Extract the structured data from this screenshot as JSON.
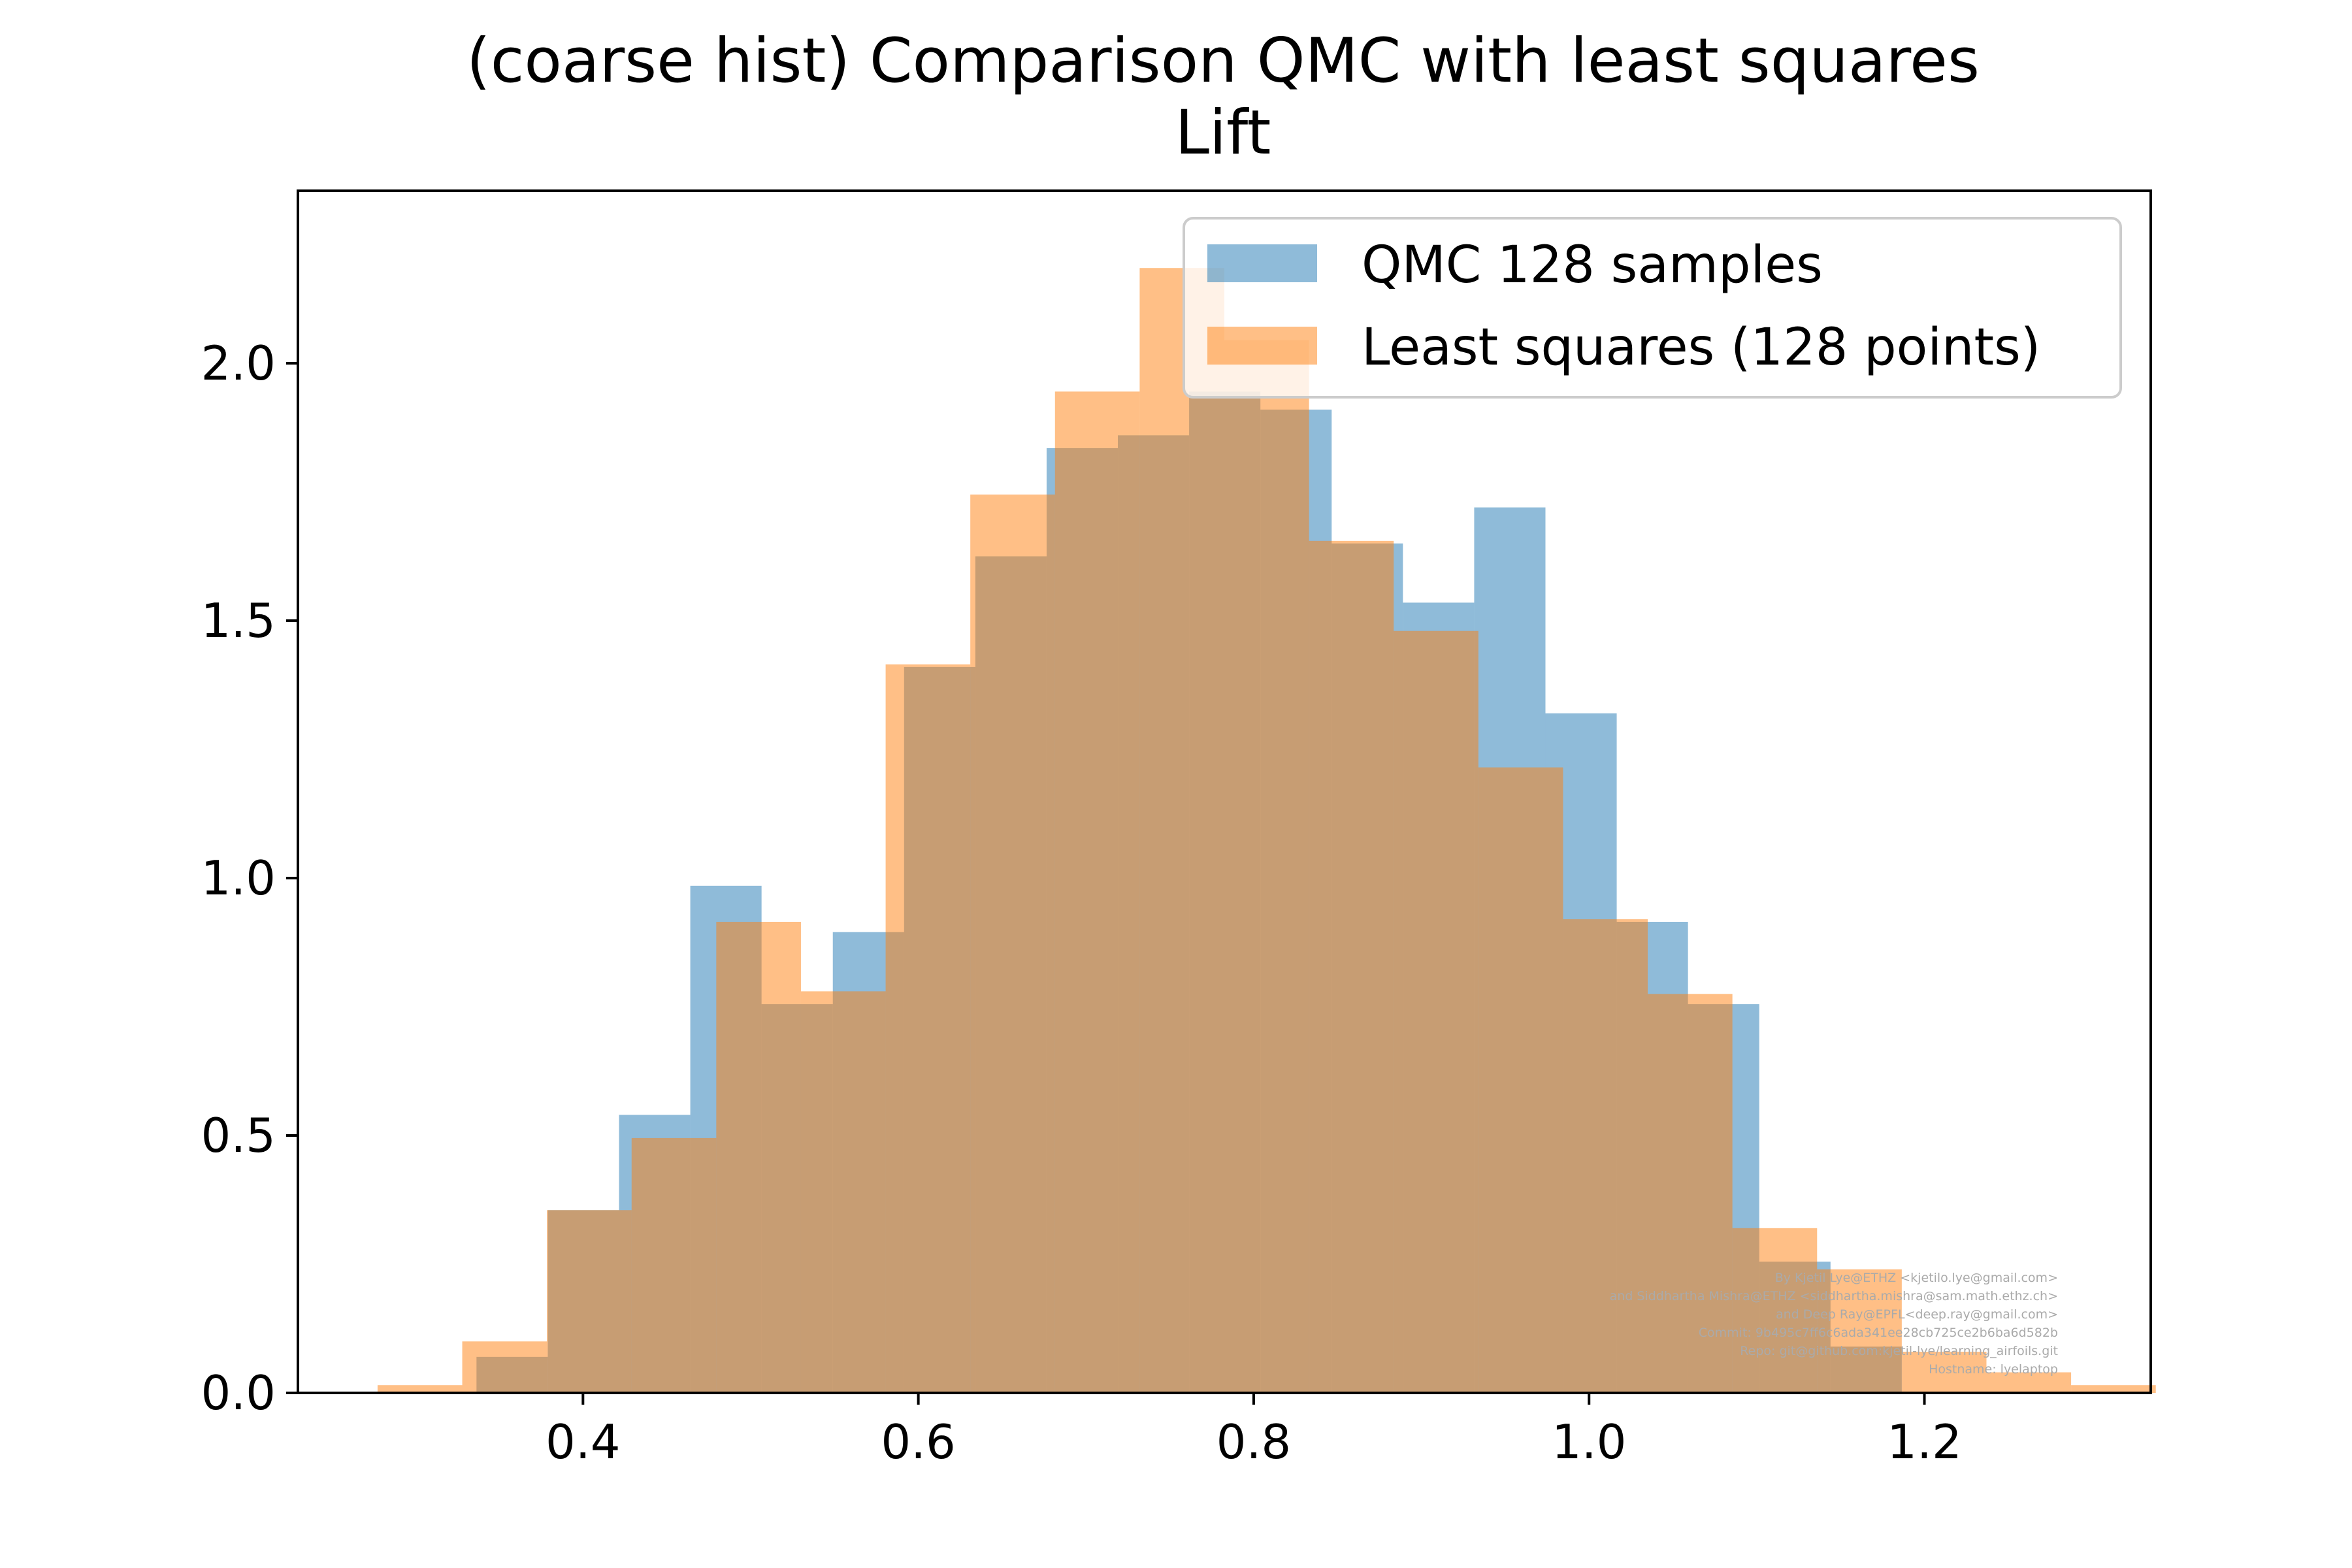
{
  "chart_data": {
    "type": "bar",
    "title": "(coarse hist) Comparison QMC with least squares",
    "subtitle": "Lift",
    "xlabel": "",
    "ylabel": "",
    "xlim": [
      0.23,
      1.335
    ],
    "ylim": [
      0,
      2.335
    ],
    "xticks": [
      {
        "value": 0.4,
        "label": "0.4"
      },
      {
        "value": 0.6,
        "label": "0.6"
      },
      {
        "value": 0.8,
        "label": "0.8"
      },
      {
        "value": 1.0,
        "label": "1.0"
      },
      {
        "value": 1.2,
        "label": "1.2"
      }
    ],
    "yticks": [
      {
        "value": 0.0,
        "label": "0.0"
      },
      {
        "value": 0.5,
        "label": "0.5"
      },
      {
        "value": 1.0,
        "label": "1.0"
      },
      {
        "value": 1.5,
        "label": "1.5"
      },
      {
        "value": 2.0,
        "label": "2.0"
      }
    ],
    "grid": false,
    "legend": {
      "placement": "top-right"
    },
    "series": [
      {
        "name": "QMC 128 samples",
        "color": "#1f77b4",
        "alpha": 0.5,
        "bin_start": 0.3365,
        "bin_width": 0.0425,
        "values": [
          0.07,
          0.355,
          0.54,
          0.985,
          0.755,
          0.895,
          1.41,
          1.625,
          1.835,
          1.86,
          1.945,
          1.91,
          1.65,
          1.535,
          1.72,
          1.32,
          0.915,
          0.755,
          0.255,
          0.09
        ]
      },
      {
        "name": "Least squares (128 points)",
        "color": "#ff7f0e",
        "alpha": 0.5,
        "bin_start": 0.2775,
        "bin_width": 0.0505,
        "values": [
          0.015,
          0.1,
          0.355,
          0.495,
          0.915,
          0.78,
          1.415,
          1.745,
          1.945,
          2.185,
          2.045,
          1.655,
          1.48,
          1.215,
          0.92,
          0.775,
          0.32,
          0.24,
          0.08,
          0.04,
          0.015
        ]
      }
    ]
  },
  "watermark": {
    "lines": [
      "By Kjetil Lye@ETHZ <kjetilo.lye@gmail.com>",
      "and Siddhartha Mishra@ETHZ <siddhartha.mishra@sam.math.ethz.ch>",
      "and Deep Ray@EPFL<deep.ray@gmail.com>",
      "Commit: 9b495c7ff6c6ada341ee28cb725ce2b6ba6d582b",
      "Repo: git@github.com:kjetil-lye/learning_airfoils.git",
      "Hostname: lyelaptop"
    ]
  }
}
